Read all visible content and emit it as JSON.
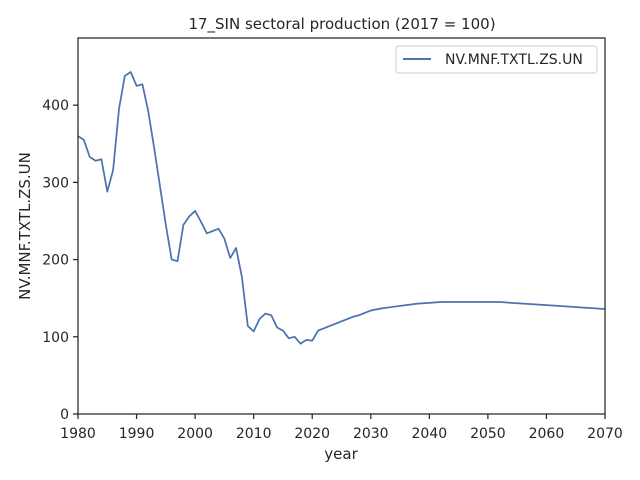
{
  "chart_data": {
    "type": "line",
    "title": "17_SIN sectoral production (2017 = 100)",
    "xlabel": "year",
    "ylabel": "NV.MNF.TXTL.ZS.UN",
    "xlim": [
      1980,
      2070
    ],
    "ylim": [
      0,
      487
    ],
    "xticks": [
      1980,
      1990,
      2000,
      2010,
      2020,
      2030,
      2040,
      2050,
      2060,
      2070
    ],
    "yticks": [
      0,
      100,
      200,
      300,
      400
    ],
    "grid": false,
    "legend": "top-right",
    "line_color": "#4c72b0",
    "series": [
      {
        "name": "NV.MNF.TXTL.ZS.UN",
        "x": [
          1980,
          1981,
          1982,
          1983,
          1984,
          1985,
          1986,
          1987,
          1988,
          1989,
          1990,
          1991,
          1992,
          1993,
          1994,
          1995,
          1996,
          1997,
          1998,
          1999,
          2000,
          2001,
          2002,
          2003,
          2004,
          2005,
          2006,
          2007,
          2008,
          2009,
          2010,
          2011,
          2012,
          2013,
          2014,
          2015,
          2016,
          2017,
          2018,
          2019,
          2020,
          2021,
          2022,
          2023,
          2024,
          2025,
          2026,
          2027,
          2028,
          2029,
          2030,
          2032,
          2034,
          2036,
          2038,
          2040,
          2042,
          2044,
          2046,
          2048,
          2050,
          2052,
          2054,
          2056,
          2058,
          2060,
          2062,
          2064,
          2066,
          2068,
          2070
        ],
        "y": [
          360,
          355,
          333,
          328,
          330,
          288,
          316,
          395,
          438,
          443,
          425,
          427,
          392,
          345,
          295,
          245,
          200,
          198,
          245,
          256,
          263,
          249,
          234,
          237,
          240,
          227,
          202,
          215,
          177,
          114,
          107,
          123,
          130,
          128,
          112,
          108,
          98,
          100,
          91,
          96,
          95,
          108,
          111,
          114,
          117,
          120,
          123,
          126,
          128,
          131,
          134,
          137,
          139,
          141,
          143,
          144,
          145,
          145,
          145,
          145,
          145,
          145,
          144,
          143,
          142,
          141,
          140,
          139,
          138,
          137,
          136
        ]
      }
    ]
  }
}
